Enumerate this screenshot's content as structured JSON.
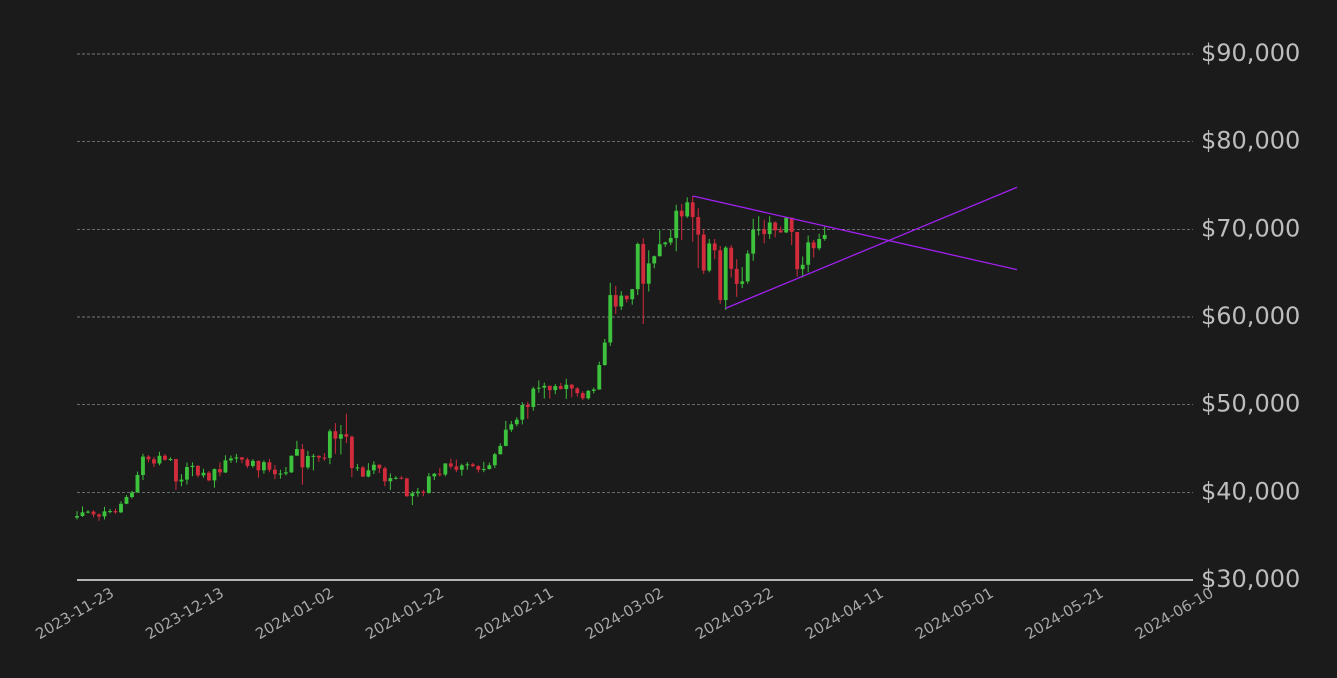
{
  "chart_data": {
    "type": "candlestick",
    "x": [
      "2023-11-23",
      "2023-11-24",
      "2023-11-25",
      "2023-11-26",
      "2023-11-27",
      "2023-11-28",
      "2023-11-29",
      "2023-11-30",
      "2023-12-01",
      "2023-12-02",
      "2023-12-03",
      "2023-12-04",
      "2023-12-05",
      "2023-12-06",
      "2023-12-07",
      "2023-12-08",
      "2023-12-09",
      "2023-12-10",
      "2023-12-11",
      "2023-12-12",
      "2023-12-13",
      "2023-12-14",
      "2023-12-15",
      "2023-12-16",
      "2023-12-17",
      "2023-12-18",
      "2023-12-19",
      "2023-12-20",
      "2023-12-21",
      "2023-12-22",
      "2023-12-23",
      "2023-12-24",
      "2023-12-25",
      "2023-12-26",
      "2023-12-27",
      "2023-12-28",
      "2023-12-29",
      "2023-12-30",
      "2023-12-31",
      "2024-01-01",
      "2024-01-02",
      "2024-01-03",
      "2024-01-04",
      "2024-01-05",
      "2024-01-06",
      "2024-01-07",
      "2024-01-08",
      "2024-01-09",
      "2024-01-10",
      "2024-01-11",
      "2024-01-12",
      "2024-01-13",
      "2024-01-14",
      "2024-01-15",
      "2024-01-16",
      "2024-01-17",
      "2024-01-18",
      "2024-01-19",
      "2024-01-20",
      "2024-01-21",
      "2024-01-22",
      "2024-01-23",
      "2024-01-24",
      "2024-01-25",
      "2024-01-26",
      "2024-01-27",
      "2024-01-28",
      "2024-01-29",
      "2024-01-30",
      "2024-01-31",
      "2024-02-01",
      "2024-02-02",
      "2024-02-03",
      "2024-02-04",
      "2024-02-05",
      "2024-02-06",
      "2024-02-07",
      "2024-02-08",
      "2024-02-09",
      "2024-02-10",
      "2024-02-11",
      "2024-02-12",
      "2024-02-13",
      "2024-02-14",
      "2024-02-15",
      "2024-02-16",
      "2024-02-17",
      "2024-02-18",
      "2024-02-19",
      "2024-02-20",
      "2024-02-21",
      "2024-02-22",
      "2024-02-23",
      "2024-02-24",
      "2024-02-25",
      "2024-02-26",
      "2024-02-27",
      "2024-02-28",
      "2024-02-29",
      "2024-03-01",
      "2024-03-02",
      "2024-03-03",
      "2024-03-04",
      "2024-03-05",
      "2024-03-06",
      "2024-03-07",
      "2024-03-08",
      "2024-03-09",
      "2024-03-10",
      "2024-03-11",
      "2024-03-12",
      "2024-03-13",
      "2024-03-14",
      "2024-03-15",
      "2024-03-16",
      "2024-03-17",
      "2024-03-18",
      "2024-03-19",
      "2024-03-20",
      "2024-03-21",
      "2024-03-22",
      "2024-03-23",
      "2024-03-24",
      "2024-03-25",
      "2024-03-26",
      "2024-03-27",
      "2024-03-28",
      "2024-03-29",
      "2024-03-30",
      "2024-03-31",
      "2024-04-01",
      "2024-04-02",
      "2024-04-03",
      "2024-04-04",
      "2024-04-05",
      "2024-04-06",
      "2024-04-07"
    ],
    "open": [
      37130,
      37300,
      37720,
      37800,
      37480,
      37250,
      37830,
      37860,
      37720,
      38690,
      39460,
      39970,
      41980,
      44080,
      43770,
      43290,
      44170,
      43720,
      43790,
      41240,
      41450,
      42890,
      43020,
      41930,
      42240,
      41360,
      42650,
      42270,
      43650,
      43860,
      43990,
      43740,
      43010,
      43590,
      42510,
      43440,
      42580,
      42070,
      42140,
      42280,
      44180,
      44940,
      42850,
      44150,
      44160,
      43970,
      43930,
      46970,
      46120,
      46630,
      46340,
      42780,
      42840,
      41800,
      42510,
      43150,
      42740,
      41260,
      41620,
      41660,
      41580,
      39570,
      39900,
      40080,
      39930,
      41820,
      42120,
      42030,
      43300,
      42950,
      42580,
      43080,
      43190,
      42990,
      42580,
      42660,
      43090,
      44340,
      45290,
      47150,
      47770,
      48290,
      49960,
      49740,
      51830,
      51940,
      52160,
      51660,
      52120,
      51780,
      52280,
      51850,
      51320,
      50730,
      51570,
      51730,
      54520,
      57090,
      62500,
      61200,
      62440,
      62030,
      63170,
      68330,
      63800,
      66110,
      66930,
      68300,
      68500,
      69020,
      72120,
      71480,
      73080,
      71400,
      69400,
      65300,
      68390,
      67610,
      61930,
      67910,
      65490,
      63780,
      64060,
      67230,
      69960,
      69990,
      69460,
      70780,
      69890,
      69650,
      71330,
      69700,
      65460,
      65960,
      68510,
      67840,
      68900
    ],
    "high": [
      37850,
      38400,
      37960,
      37950,
      37600,
      38350,
      38120,
      38150,
      38970,
      39680,
      40180,
      42370,
      44400,
      44250,
      44050,
      44620,
      44380,
      44000,
      43820,
      42060,
      43390,
      43420,
      43090,
      42700,
      42430,
      42730,
      43400,
      44230,
      44200,
      44380,
      44020,
      43950,
      43790,
      43640,
      43650,
      43800,
      43120,
      42580,
      42890,
      44190,
      45880,
      45500,
      44730,
      44380,
      44230,
      44480,
      47200,
      47900,
      47690,
      48970,
      46490,
      43250,
      43010,
      43330,
      43550,
      43190,
      42930,
      42160,
      41850,
      41860,
      41680,
      40130,
      40500,
      40290,
      42200,
      42210,
      42800,
      43300,
      43840,
      43730,
      43260,
      43450,
      43360,
      43100,
      43480,
      43380,
      44500,
      45580,
      48150,
      48150,
      48560,
      50290,
      50330,
      52040,
      52770,
      52520,
      52160,
      52350,
      52480,
      52950,
      52370,
      52000,
      51540,
      51690,
      51950,
      54910,
      57500,
      63900,
      63540,
      62960,
      62440,
      63200,
      68500,
      69000,
      67600,
      67000,
      69900,
      68600,
      70000,
      72800,
      72900,
      73650,
      73780,
      72400,
      70000,
      68900,
      68900,
      68100,
      68100,
      68200,
      66600,
      65700,
      67600,
      71200,
      71500,
      71100,
      71500,
      70900,
      70300,
      71400,
      71330,
      69700,
      66900,
      69300,
      68800,
      69500,
      70300
    ],
    "low": [
      36900,
      37200,
      37580,
      37180,
      36750,
      36900,
      37600,
      37550,
      37630,
      38650,
      39300,
      39970,
      41400,
      43430,
      42880,
      43080,
      43600,
      43580,
      40270,
      40690,
      40890,
      41830,
      41700,
      41650,
      41260,
      40530,
      41820,
      42200,
      43350,
      43400,
      43320,
      42760,
      42800,
      41660,
      42130,
      42300,
      41500,
      41560,
      41930,
      42200,
      44180,
      40880,
      42630,
      42510,
      43480,
      43590,
      43210,
      44400,
      44330,
      45620,
      41750,
      42440,
      41720,
      41710,
      42080,
      42200,
      40700,
      40280,
      41460,
      41470,
      39460,
      38550,
      39500,
      39560,
      39840,
      41400,
      41800,
      41820,
      42700,
      42300,
      41900,
      42580,
      42880,
      42260,
      42300,
      42600,
      42770,
      44330,
      45260,
      46900,
      47520,
      47750,
      48380,
      49300,
      51360,
      50700,
      50680,
      51190,
      51730,
      50650,
      50830,
      50920,
      50540,
      50580,
      51280,
      51700,
      54450,
      56700,
      60360,
      60800,
      61660,
      61400,
      62500,
      59200,
      62900,
      65560,
      66900,
      68000,
      68200,
      67500,
      68800,
      71300,
      68600,
      65600,
      64900,
      65100,
      66600,
      61500,
      60800,
      64500,
      62300,
      63300,
      63800,
      66400,
      69300,
      68400,
      68900,
      69100,
      69600,
      69580,
      68200,
      64600,
      64500,
      65100,
      66800,
      67600,
      68700
    ],
    "close": [
      37300,
      37720,
      37800,
      37480,
      37250,
      37830,
      37860,
      37720,
      38690,
      39460,
      39970,
      41980,
      44080,
      43770,
      43290,
      44170,
      43720,
      43790,
      41240,
      41450,
      42890,
      43020,
      41930,
      42240,
      41360,
      42650,
      42270,
      43650,
      43860,
      43990,
      43740,
      43010,
      43590,
      42510,
      43440,
      42580,
      42070,
      42140,
      42280,
      44180,
      44940,
      42850,
      44150,
      44160,
      43970,
      43930,
      46970,
      46120,
      46630,
      46340,
      42780,
      42840,
      41800,
      42510,
      43150,
      42740,
      41260,
      41620,
      41660,
      41580,
      39570,
      39900,
      40080,
      39930,
      41820,
      42120,
      42030,
      43300,
      42950,
      42580,
      43080,
      43190,
      42990,
      42580,
      42660,
      43090,
      44340,
      45290,
      47150,
      47770,
      48290,
      49960,
      49740,
      51830,
      51940,
      52160,
      51660,
      52120,
      51780,
      52280,
      51850,
      51320,
      50730,
      51570,
      51730,
      54520,
      57090,
      62500,
      61200,
      62440,
      62030,
      63170,
      68330,
      63800,
      66110,
      66930,
      68300,
      68500,
      69020,
      72120,
      71480,
      73080,
      71400,
      69400,
      65300,
      68390,
      67610,
      61930,
      67910,
      65490,
      63780,
      64060,
      67230,
      69960,
      69990,
      69460,
      70780,
      69890,
      69650,
      71330,
      69700,
      65460,
      65960,
      68510,
      67840,
      68900,
      69360
    ],
    "up_color": "#3cc23c",
    "down_color": "#d22b3b",
    "lines": [
      {
        "x": [
          "2024-03-14",
          "2024-05-12"
        ],
        "values": [
          73800,
          65400
        ],
        "color": "#a020f0"
      },
      {
        "x": [
          "2024-03-20",
          "2024-05-12"
        ],
        "values": [
          61000,
          74800
        ],
        "color": "#a020f0"
      }
    ],
    "xlim": [
      "2023-11-23",
      "2024-06-13"
    ],
    "xticks": [
      "2023-11-23",
      "2023-12-13",
      "2024-01-02",
      "2024-01-22",
      "2024-02-11",
      "2024-03-02",
      "2024-03-22",
      "2024-04-11",
      "2024-05-01",
      "2024-05-21",
      "2024-06-10"
    ],
    "ylim": [
      30000,
      90000
    ],
    "yticks": [
      {
        "value": 30000,
        "label": "$30,000"
      },
      {
        "value": 40000,
        "label": "$40,000"
      },
      {
        "value": 50000,
        "label": "$50,000"
      },
      {
        "value": 60000,
        "label": "$60,000"
      },
      {
        "value": 70000,
        "label": "$70,000"
      },
      {
        "value": 80000,
        "label": "$80,000"
      },
      {
        "value": 90000,
        "label": "$90,000"
      }
    ],
    "grid": true
  }
}
